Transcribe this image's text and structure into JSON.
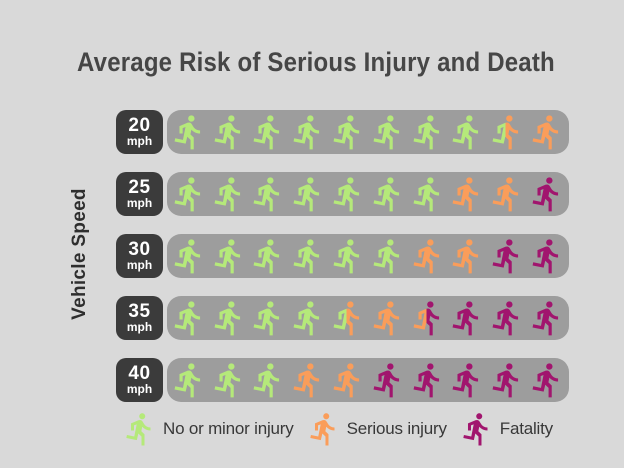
{
  "title": "Average Risk of Serious Injury and Death",
  "y_axis_label": "Vehicle Speed",
  "colors": {
    "background": "#d9d9d9",
    "bar": "#9d9d9d",
    "speed_box": "#3b3b3b",
    "speed_box_text": "#ffffff",
    "title_text": "#464646",
    "axis_label_text": "#2e2e2e",
    "legend_text": "#383838",
    "minor": "#b5e97a",
    "serious": "#fa9d5a",
    "fatality": "#a1156e"
  },
  "legend": [
    {
      "key": "minor",
      "label": "No or minor injury"
    },
    {
      "key": "serious",
      "label": "Serious injury"
    },
    {
      "key": "fatality",
      "label": "Fatality"
    }
  ],
  "chart_data": {
    "type": "pictograph",
    "unit_icon": "walking-person",
    "icons_per_row": 10,
    "each_icon_represents": "10% of pedestrians struck",
    "categories": [
      "20 mph",
      "25 mph",
      "30 mph",
      "35 mph",
      "40 mph"
    ],
    "series": [
      {
        "name": "No or minor injury",
        "values": [
          8.5,
          7,
          6,
          4.5,
          3
        ]
      },
      {
        "name": "Serious injury",
        "values": [
          1.5,
          2,
          2,
          2,
          2
        ]
      },
      {
        "name": "Fatality",
        "values": [
          0,
          1,
          2,
          3.5,
          5
        ]
      }
    ],
    "rows": [
      {
        "speed": "20",
        "unit": "mph",
        "icons": [
          "minor",
          "minor",
          "minor",
          "minor",
          "minor",
          "minor",
          "minor",
          "minor",
          "minor|serious",
          "serious"
        ]
      },
      {
        "speed": "25",
        "unit": "mph",
        "icons": [
          "minor",
          "minor",
          "minor",
          "minor",
          "minor",
          "minor",
          "minor",
          "serious",
          "serious",
          "fatality"
        ]
      },
      {
        "speed": "30",
        "unit": "mph",
        "icons": [
          "minor",
          "minor",
          "minor",
          "minor",
          "minor",
          "minor",
          "serious",
          "serious",
          "fatality",
          "fatality"
        ]
      },
      {
        "speed": "35",
        "unit": "mph",
        "icons": [
          "minor",
          "minor",
          "minor",
          "minor",
          "minor|serious",
          "serious",
          "serious|fatality",
          "fatality",
          "fatality",
          "fatality"
        ]
      },
      {
        "speed": "40",
        "unit": "mph",
        "icons": [
          "minor",
          "minor",
          "minor",
          "serious",
          "serious",
          "fatality",
          "fatality",
          "fatality",
          "fatality",
          "fatality"
        ]
      }
    ],
    "legend_position": "bottom",
    "grid": false
  }
}
